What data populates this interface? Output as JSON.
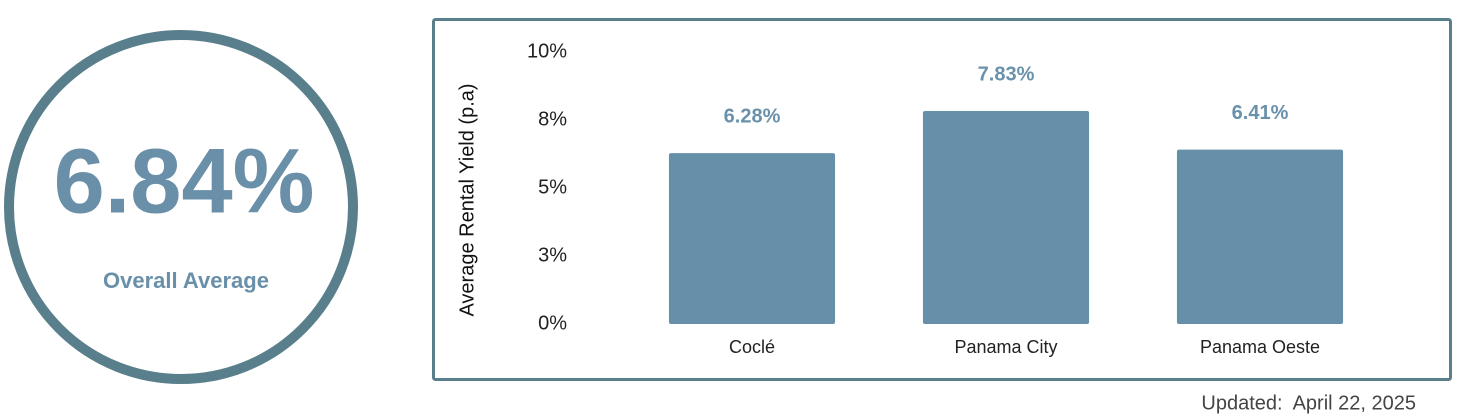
{
  "overall": {
    "value": "6.84%",
    "label": "Overall Average"
  },
  "chart_data": {
    "type": "bar",
    "y_label": "Average Rental Yield (p.a)",
    "categories": [
      "Coclé",
      "Panama City",
      "Panama Oeste"
    ],
    "values": [
      6.28,
      7.83,
      6.41
    ],
    "value_labels": [
      "6.28%",
      "7.83%",
      "6.41%"
    ],
    "color": "#6690aa",
    "ylim": [
      0,
      10
    ],
    "yticks": [
      {
        "value": 0,
        "label": "0%"
      },
      {
        "value": 2.5,
        "label": "3%"
      },
      {
        "value": 5,
        "label": "5%"
      },
      {
        "value": 7.5,
        "label": "8%"
      },
      {
        "value": 10,
        "label": "10%"
      }
    ],
    "grid": false
  },
  "footer": {
    "updated": "Updated:  April 22, 2025"
  }
}
